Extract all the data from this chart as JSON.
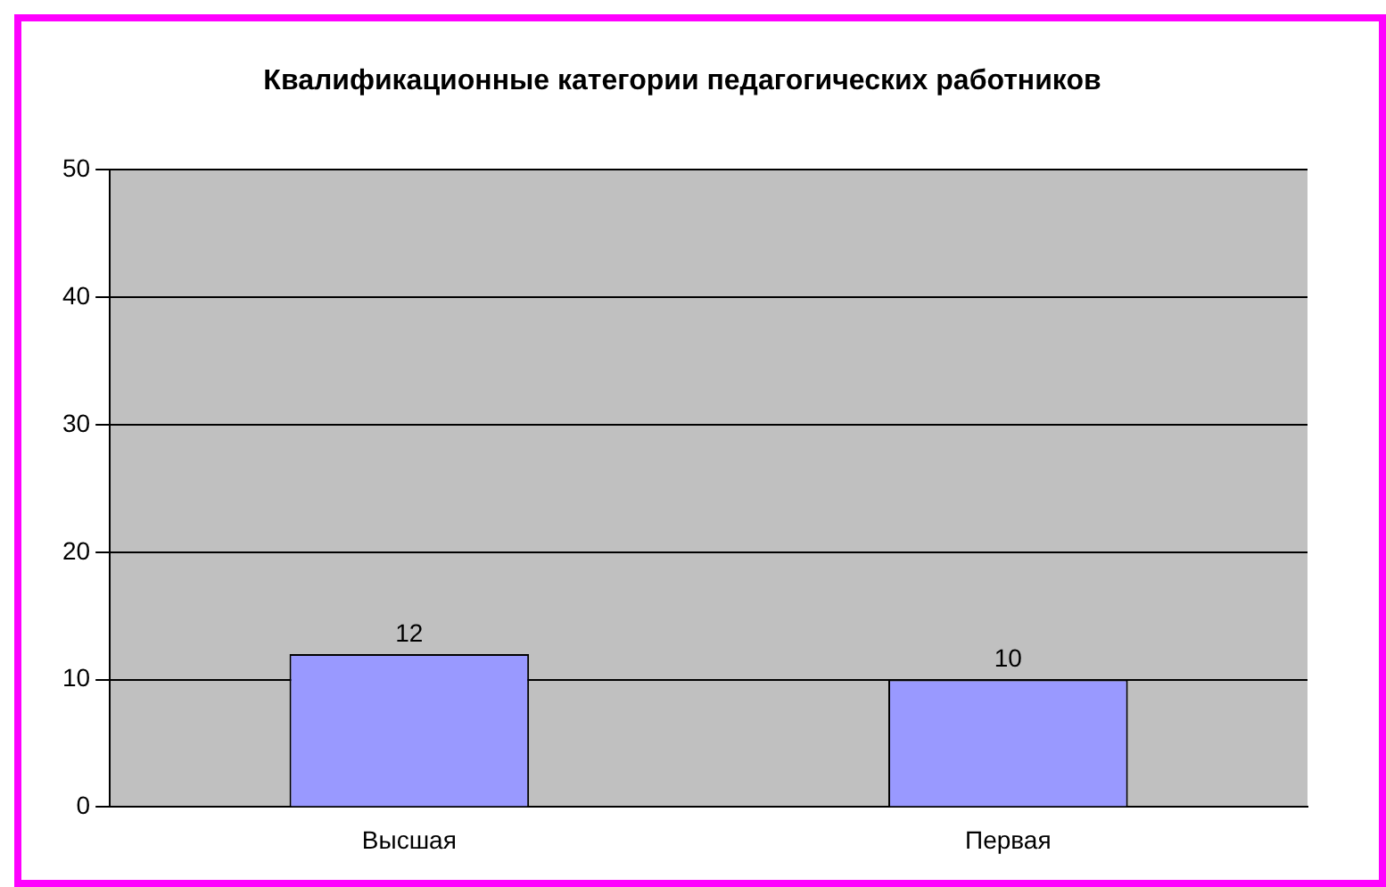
{
  "chart_data": {
    "type": "bar",
    "title": "Квалификационные категории педагогических работников",
    "categories": [
      "Высшая",
      "Первая"
    ],
    "values": [
      12,
      10
    ],
    "color": "#9999ff",
    "ylim": [
      0,
      50
    ],
    "yticks": [
      0,
      10,
      20,
      30,
      40,
      50
    ],
    "grid": "y",
    "data_labels": true,
    "legend": false
  }
}
